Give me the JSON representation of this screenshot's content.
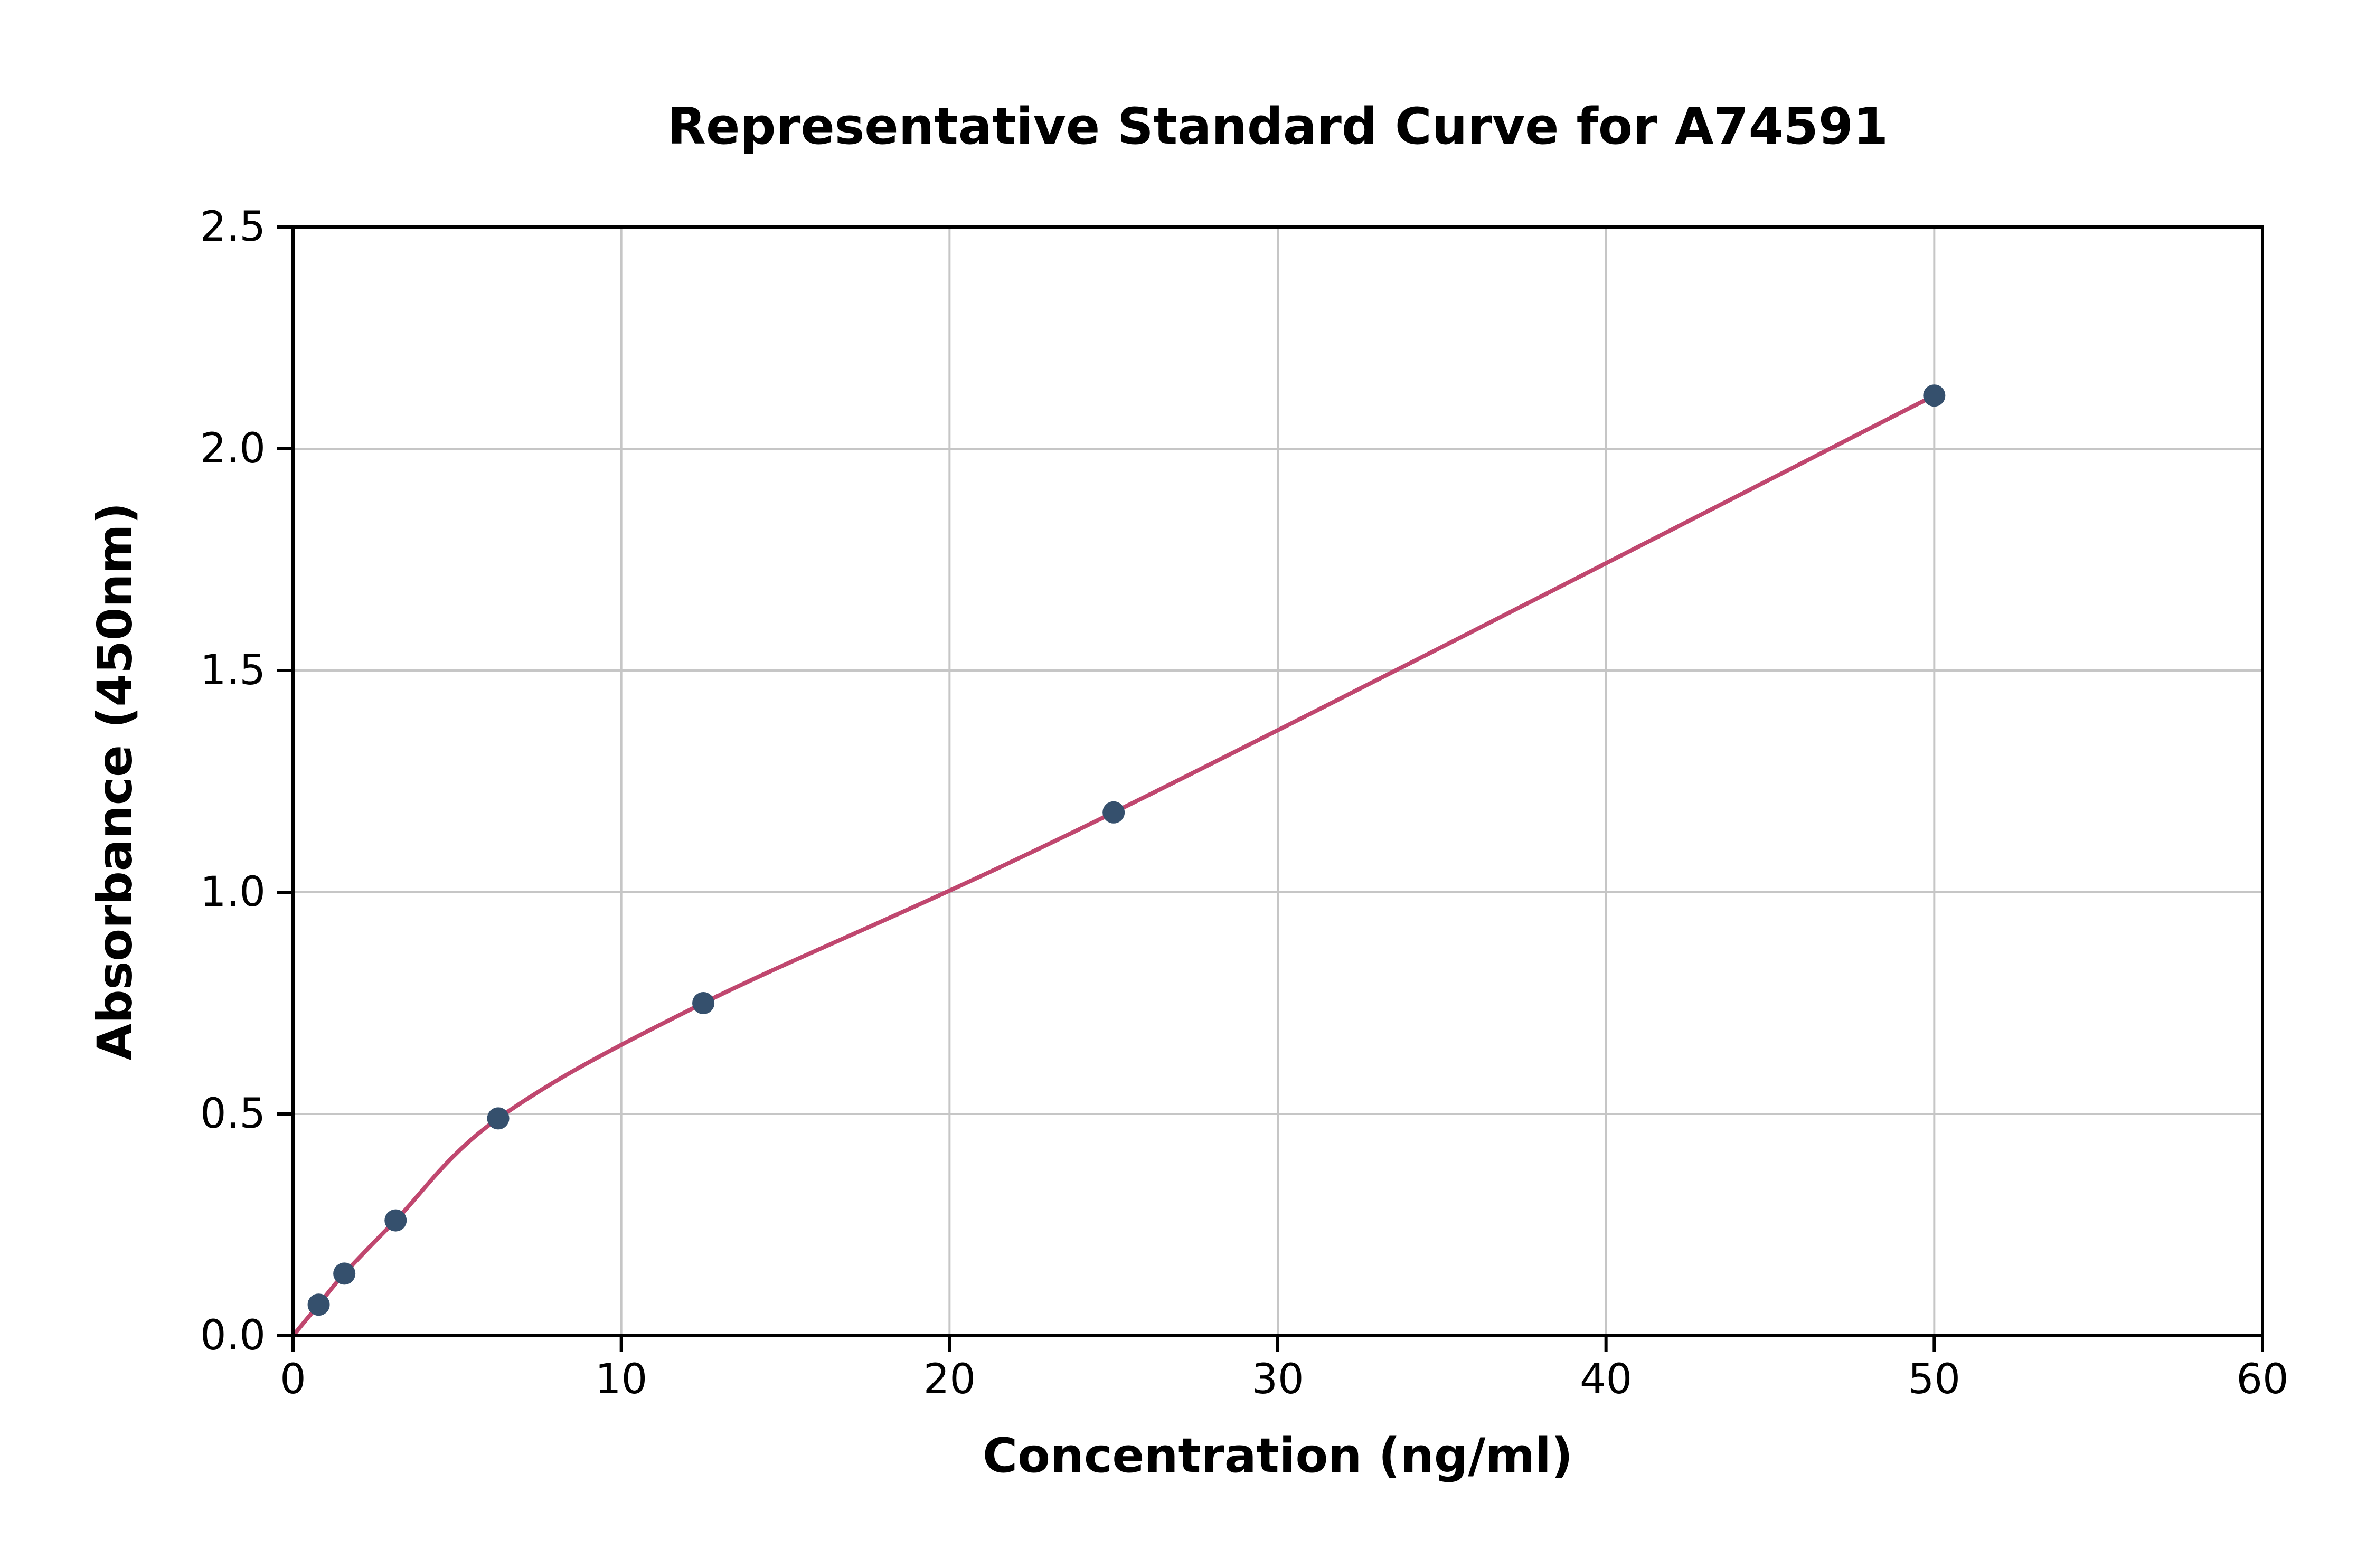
{
  "chart_data": {
    "type": "scatter",
    "title": "Representative Standard Curve for A74591",
    "xlabel": "Concentration (ng/ml)",
    "ylabel": "Absorbance (450nm)",
    "xlim": [
      0,
      60
    ],
    "ylim": [
      0,
      2.5
    ],
    "xticks": [
      0,
      10,
      20,
      30,
      40,
      50,
      60
    ],
    "xtick_labels": [
      "0",
      "10",
      "20",
      "30",
      "40",
      "50",
      "60"
    ],
    "yticks": [
      0,
      0.5,
      1.0,
      1.5,
      2.0,
      2.5
    ],
    "ytick_labels": [
      "0.0",
      "0.5",
      "1.0",
      "1.5",
      "2.0",
      "2.5"
    ],
    "grid": true,
    "legend": "none",
    "series": [
      {
        "name": "standards",
        "points": [
          [
            0.781,
            0.07
          ],
          [
            1.563,
            0.14
          ],
          [
            3.125,
            0.26
          ],
          [
            6.25,
            0.49
          ],
          [
            12.5,
            0.75
          ],
          [
            25,
            1.18
          ],
          [
            50,
            2.12
          ]
        ]
      }
    ],
    "fit_curve": {
      "style": "smooth-through-points",
      "start": [
        0,
        0
      ]
    },
    "colors": {
      "marker": "#35506d",
      "line": "#c0476f",
      "grid": "#c6c6c6",
      "axis": "#000000",
      "background": "#ffffff"
    }
  }
}
